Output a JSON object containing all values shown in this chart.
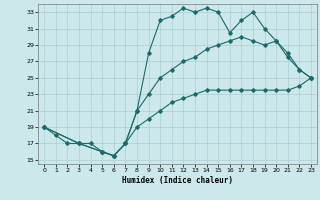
{
  "xlabel": "Humidex (Indice chaleur)",
  "background_color": "#cce8ea",
  "grid_color": "#aacdd2",
  "line_color": "#1a6b6b",
  "xlim": [
    -0.5,
    23.5
  ],
  "ylim": [
    14.5,
    34
  ],
  "xticks": [
    0,
    1,
    2,
    3,
    4,
    5,
    6,
    7,
    8,
    9,
    10,
    11,
    12,
    13,
    14,
    15,
    16,
    17,
    18,
    19,
    20,
    21,
    22,
    23
  ],
  "yticks": [
    15,
    17,
    19,
    21,
    23,
    25,
    27,
    29,
    31,
    33
  ],
  "line1_x": [
    0,
    1,
    2,
    3,
    4,
    5,
    6,
    7,
    8,
    9,
    10,
    11,
    12,
    13,
    14,
    15,
    16,
    17,
    18,
    19,
    20,
    21,
    22,
    23
  ],
  "line1_y": [
    19,
    18,
    17,
    17,
    17,
    16,
    15.5,
    17,
    21,
    28,
    32,
    32.5,
    33.5,
    33,
    33.5,
    33,
    30.5,
    32,
    33,
    31,
    29.5,
    28,
    26,
    25
  ],
  "line2_x": [
    0,
    3,
    5,
    6,
    7,
    8,
    9,
    10,
    11,
    12,
    13,
    14,
    15,
    16,
    17,
    18,
    19,
    20,
    21,
    22,
    23
  ],
  "line2_y": [
    19,
    17,
    16,
    15.5,
    17,
    21,
    23,
    25,
    26,
    27,
    27.5,
    28.5,
    29,
    29.5,
    30,
    29.5,
    29,
    29.5,
    27.5,
    26,
    25
  ],
  "line3_x": [
    0,
    3,
    5,
    6,
    7,
    8,
    9,
    10,
    11,
    12,
    13,
    14,
    15,
    16,
    17,
    18,
    19,
    20,
    21,
    22,
    23
  ],
  "line3_y": [
    19,
    17,
    16,
    15.5,
    17,
    19,
    20,
    21,
    22,
    22.5,
    23,
    23.5,
    23.5,
    23.5,
    23.5,
    23.5,
    23.5,
    23.5,
    23.5,
    24,
    25
  ]
}
